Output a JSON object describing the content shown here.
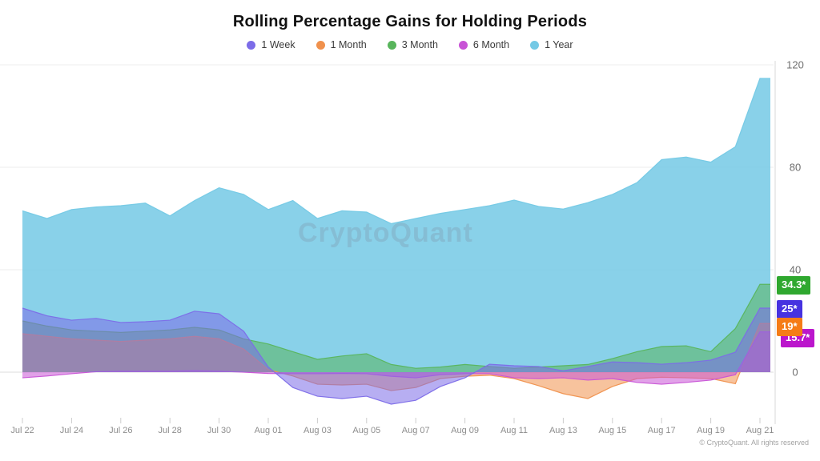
{
  "title": "Rolling Percentage Gains for Holding Periods",
  "watermark": "CryptoQuant",
  "footer": "© CryptoQuant. All rights reserved",
  "axes": {
    "y_ticks": [
      0,
      40,
      80,
      120
    ],
    "x_labeled_every": 2
  },
  "chart_data": {
    "type": "area",
    "title": "Rolling Percentage Gains for Holding Periods",
    "xlabel": "",
    "ylabel": "",
    "ylim": [
      -20,
      120
    ],
    "grid": true,
    "legend_position": "top",
    "x": [
      "Jul 22",
      "Jul 23",
      "Jul 24",
      "Jul 25",
      "Jul 26",
      "Jul 27",
      "Jul 28",
      "Jul 29",
      "Jul 30",
      "Jul 31",
      "Aug 01",
      "Aug 02",
      "Aug 03",
      "Aug 04",
      "Aug 05",
      "Aug 06",
      "Aug 07",
      "Aug 08",
      "Aug 09",
      "Aug 10",
      "Aug 11",
      "Aug 12",
      "Aug 13",
      "Aug 14",
      "Aug 15",
      "Aug 16",
      "Aug 17",
      "Aug 18",
      "Aug 19",
      "Aug 20",
      "Aug 21"
    ],
    "draw_order": [
      "1 Year",
      "3 Month",
      "1 Month",
      "6 Month",
      "1 Week"
    ],
    "series": [
      {
        "name": "1 Week",
        "color": "#7c6ce8",
        "badge": {
          "text": "25*",
          "bg": "#4632e0",
          "dx": 0,
          "dy": 2,
          "behind": false
        },
        "values": [
          25,
          22,
          20.3,
          21,
          19.4,
          19.7,
          20.3,
          23.8,
          22.8,
          16,
          2,
          -6,
          -9.4,
          -10.3,
          -9.4,
          -12.5,
          -11,
          -5.6,
          -2.2,
          3.1,
          2.5,
          2.2,
          0.5,
          2.2,
          4,
          3.7,
          3.1,
          3.7,
          4.7,
          7.8,
          25
        ]
      },
      {
        "name": "1 Month",
        "color": "#f0914d",
        "badge": {
          "text": "19*",
          "bg": "#f57c17",
          "dx": 0,
          "dy": 5,
          "behind": false
        },
        "values": [
          15,
          14,
          13,
          12.5,
          12,
          12.5,
          13,
          14,
          13,
          9,
          1,
          -1.5,
          -4.7,
          -5,
          -4.7,
          -7.2,
          -6,
          -2.5,
          -1.6,
          -1.2,
          -2.5,
          -5.3,
          -8.4,
          -10.3,
          -5.6,
          -2.5,
          -2,
          -2.2,
          -2.5,
          -4.5,
          19
        ]
      },
      {
        "name": "3 Month",
        "color": "#58b55c",
        "badge": {
          "text": "34.3*",
          "bg": "#2fa82f",
          "dx": 0,
          "dy": 2,
          "behind": false
        },
        "values": [
          20,
          18,
          16.5,
          16,
          15.5,
          16,
          16.5,
          17.5,
          16.5,
          13,
          11,
          8,
          5,
          6.3,
          7.2,
          3,
          1.5,
          2,
          3,
          2.2,
          1.5,
          2,
          2.5,
          3,
          5.3,
          8,
          10,
          10.3,
          8,
          17,
          34.3
        ]
      },
      {
        "name": "6 Month",
        "color": "#c853d6",
        "badge": {
          "text": "15.7*",
          "bg": "#bb16cc",
          "dx": 5,
          "dy": 8,
          "behind": true
        },
        "values": [
          -2.2,
          -1.5,
          -0.6,
          0.2,
          0.4,
          0.4,
          0.4,
          0.6,
          0.4,
          0,
          -0.5,
          -0.6,
          -0.6,
          -0.5,
          -0.6,
          -1.6,
          -2.2,
          -1,
          -0.6,
          -0.6,
          -2.2,
          -2.5,
          -2.2,
          -3.1,
          -2.5,
          -4,
          -4.7,
          -4,
          -3.1,
          -1,
          15.7
        ]
      },
      {
        "name": "1 Year",
        "color": "#74c9e5",
        "badge": null,
        "values": [
          63,
          60,
          63.5,
          64.5,
          65,
          66,
          61,
          67,
          72,
          69.4,
          63.5,
          67,
          60,
          63,
          62.5,
          58,
          60,
          62,
          63.5,
          65,
          67.2,
          64.7,
          63.7,
          66.2,
          69.4,
          74,
          83,
          84,
          82,
          88,
          114.7
        ]
      }
    ]
  }
}
